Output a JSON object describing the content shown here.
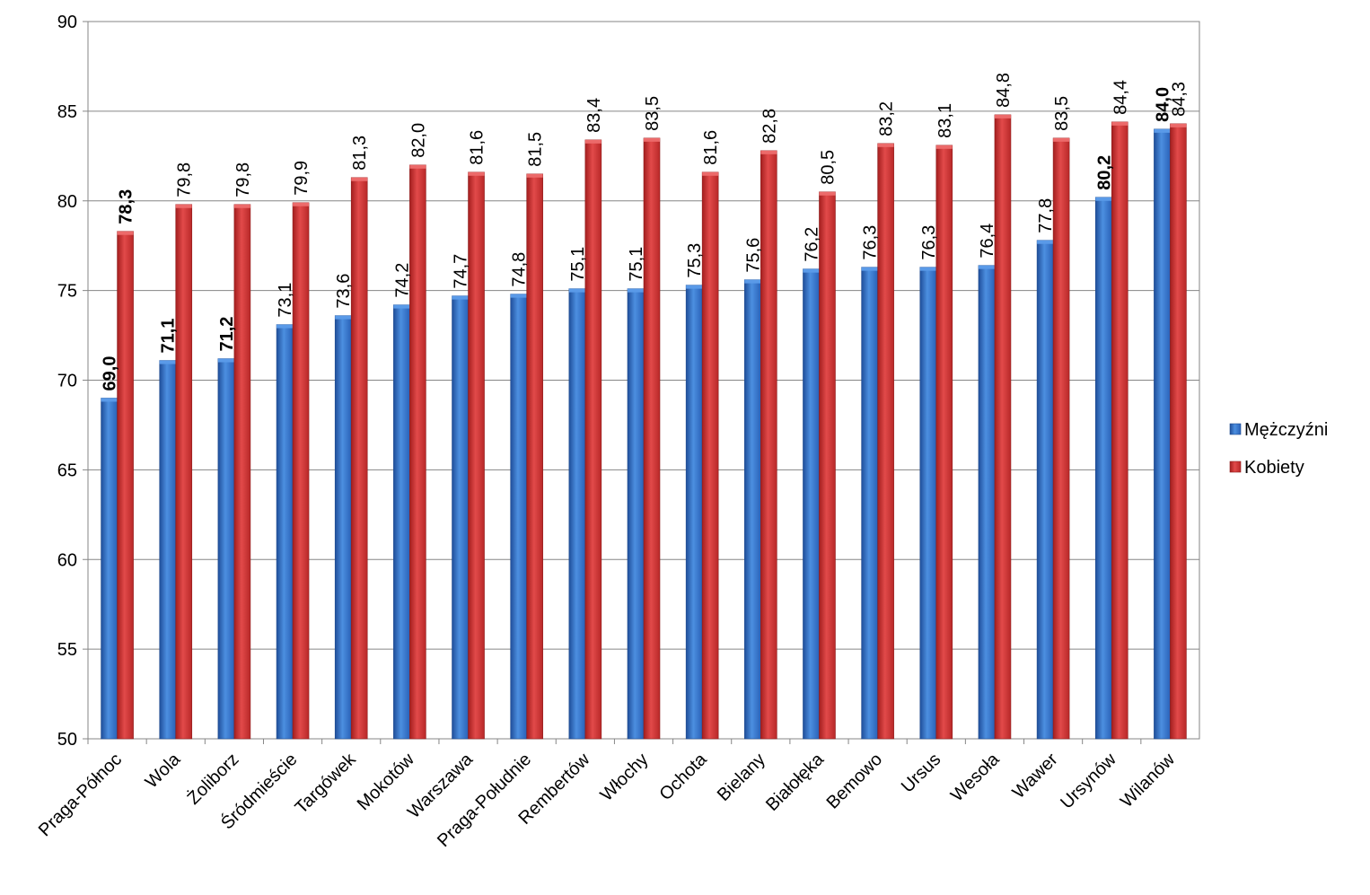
{
  "chart_data": {
    "type": "bar",
    "title": "",
    "xlabel": "",
    "ylabel": "",
    "ylim": [
      50,
      90
    ],
    "yticks": [
      "50",
      "55",
      "60",
      "65",
      "70",
      "75",
      "80",
      "85",
      "90"
    ],
    "grid": "horizontal",
    "legend_position": "right",
    "categories": [
      "Praga-Północ",
      "Wola",
      "Żoliborz",
      "Śródmieście",
      "Targówek",
      "Mokotów",
      "Warszawa",
      "Praga-Południe",
      "Rembertów",
      "Włochy",
      "Ochota",
      "Bielany",
      "Białołęka",
      "Bemowo",
      "Ursus",
      "Wesoła",
      "Wawer",
      "Ursynów",
      "Wilanów"
    ],
    "series": [
      {
        "name": "Mężczyźni",
        "color": "#3A7FD5",
        "values": [
          69.0,
          71.1,
          71.2,
          73.1,
          73.6,
          74.2,
          74.7,
          74.8,
          75.1,
          75.1,
          75.3,
          75.6,
          76.2,
          76.3,
          76.3,
          76.4,
          77.8,
          80.2,
          84.0
        ],
        "labels": [
          "69,0",
          "71,1",
          "71,2",
          "73,1",
          "73,6",
          "74,2",
          "74,7",
          "74,8",
          "75,1",
          "75,1",
          "75,3",
          "75,6",
          "76,2",
          "76,3",
          "76,3",
          "76,4",
          "77,8",
          "80,2",
          "84,0"
        ],
        "bold_labels": [
          0,
          1,
          2,
          17,
          18
        ]
      },
      {
        "name": "Kobiety",
        "color": "#D93A3A",
        "values": [
          78.3,
          79.8,
          79.8,
          79.9,
          81.3,
          82.0,
          81.6,
          81.5,
          83.4,
          83.5,
          81.6,
          82.8,
          80.5,
          83.2,
          83.1,
          84.8,
          83.5,
          84.4,
          84.3
        ],
        "labels": [
          "78,3",
          "79,8",
          "79,8",
          "79,9",
          "81,3",
          "82,0",
          "81,6",
          "81,5",
          "83,4",
          "83,5",
          "81,6",
          "82,8",
          "80,5",
          "83,2",
          "83,1",
          "84,8",
          "83,5",
          "84,4",
          "84,3"
        ],
        "bold_labels": [
          0
        ]
      }
    ]
  }
}
